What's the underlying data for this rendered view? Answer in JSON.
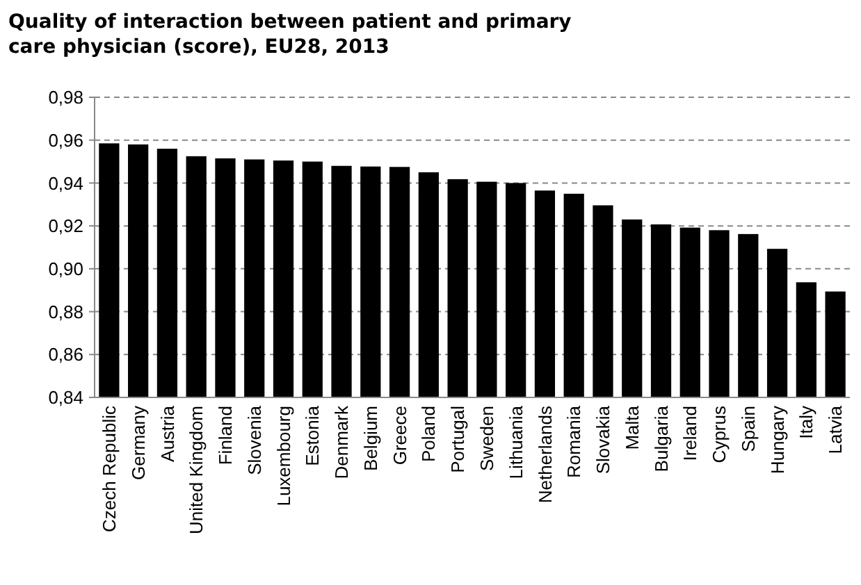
{
  "chart_data": {
    "type": "bar",
    "title": "Quality of interaction between patient and primary care physician (score), EU28, 2013",
    "categories": [
      "Czech Republic",
      "Germany",
      "Austria",
      "United Kingdom",
      "Finland",
      "Slovenia",
      "Luxembourg",
      "Estonia",
      "Denmark",
      "Belgium",
      "Greece",
      "Poland",
      "Portugal",
      "Sweden",
      "Lithuania",
      "Netherlands",
      "Romania",
      "Slovakia",
      "Malta",
      "Bulgaria",
      "Ireland",
      "Cyprus",
      "Spain",
      "Hungary",
      "Italy",
      "Latvia"
    ],
    "values": [
      0.9585,
      0.958,
      0.956,
      0.9525,
      0.9515,
      0.951,
      0.9505,
      0.95,
      0.948,
      0.9477,
      0.9475,
      0.945,
      0.9418,
      0.9406,
      0.94,
      0.9365,
      0.935,
      0.9296,
      0.923,
      0.9207,
      0.9192,
      0.918,
      0.9162,
      0.9093,
      0.8937,
      0.8894
    ],
    "color": "#000000",
    "ylim": [
      0.84,
      0.98
    ],
    "yticks": [
      {
        "value": 0.84,
        "label": "0,84"
      },
      {
        "value": 0.86,
        "label": "0,86"
      },
      {
        "value": 0.88,
        "label": "0,88"
      },
      {
        "value": 0.9,
        "label": "0,90"
      },
      {
        "value": 0.92,
        "label": "0,92"
      },
      {
        "value": 0.94,
        "label": "0,94"
      },
      {
        "value": 0.96,
        "label": "0,96"
      },
      {
        "value": 0.98,
        "label": "0,98"
      }
    ],
    "grid": "y"
  }
}
